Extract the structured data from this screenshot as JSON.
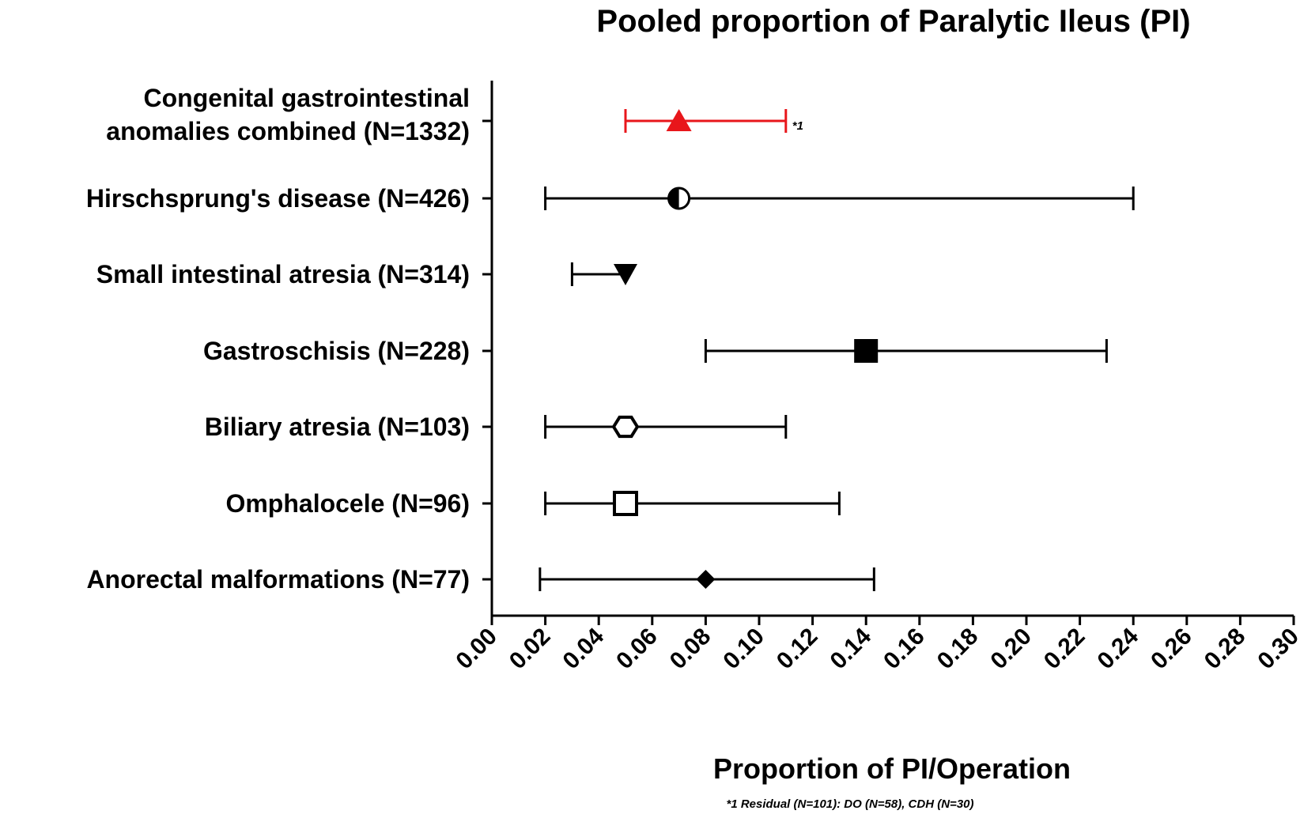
{
  "chart_data": {
    "type": "forest",
    "title": "Pooled proportion of Paralytic Ileus (PI)",
    "xlabel": "Proportion of PI/Operation",
    "xlim": [
      0,
      0.3
    ],
    "x_ticks": [
      "0.00",
      "0.02",
      "0.04",
      "0.06",
      "0.08",
      "0.10",
      "0.12",
      "0.14",
      "0.16",
      "0.18",
      "0.20",
      "0.22",
      "0.24",
      "0.26",
      "0.28",
      "0.30"
    ],
    "footnote": "*1 Residual (N=101): DO (N=58), CDH (N=30)",
    "rows": [
      {
        "label_lines": [
          "Congenital gastrointestinal",
          "anomalies combined (N=1332)"
        ],
        "estimate": 0.07,
        "lower": 0.05,
        "upper": 0.11,
        "marker": "triangle-up",
        "color": "#e8161b",
        "annotation": "*1"
      },
      {
        "label_lines": [
          "Hirschsprung's disease (N=426)"
        ],
        "estimate": 0.07,
        "lower": 0.02,
        "upper": 0.24,
        "marker": "half-circle",
        "color": "#000000"
      },
      {
        "label_lines": [
          "Small intestinal atresia (N=314)"
        ],
        "estimate": 0.05,
        "lower": 0.03,
        "upper": 0.05,
        "marker": "triangle-down",
        "color": "#000000"
      },
      {
        "label_lines": [
          "Gastroschisis (N=228)"
        ],
        "estimate": 0.14,
        "lower": 0.08,
        "upper": 0.23,
        "marker": "square-filled",
        "color": "#000000"
      },
      {
        "label_lines": [
          "Biliary atresia (N=103)"
        ],
        "estimate": 0.05,
        "lower": 0.02,
        "upper": 0.11,
        "marker": "hexagon-open",
        "color": "#000000"
      },
      {
        "label_lines": [
          "Omphalocele (N=96)"
        ],
        "estimate": 0.05,
        "lower": 0.02,
        "upper": 0.13,
        "marker": "square-open",
        "color": "#000000"
      },
      {
        "label_lines": [
          "Anorectal malformations (N=77)"
        ],
        "estimate": 0.08,
        "lower": 0.018,
        "upper": 0.143,
        "marker": "diamond-filled",
        "color": "#000000"
      }
    ]
  }
}
